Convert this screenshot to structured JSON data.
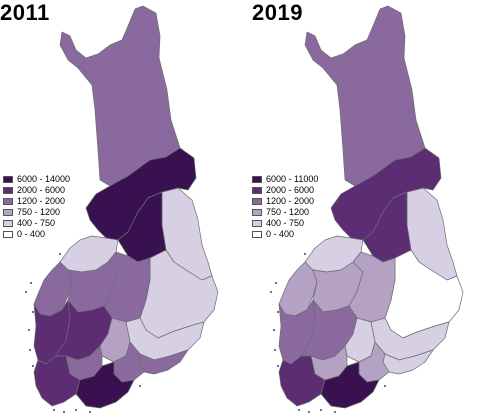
{
  "palette": {
    "c5": "#3a1150",
    "c4": "#5c2d73",
    "c3": "#8a6a9e",
    "c2": "#b4a1c4",
    "c1": "#d7cfe4",
    "c0": "#ffffff",
    "border": "#6d6d6d"
  },
  "maps": [
    {
      "id": "2011",
      "year": "2011",
      "legend": [
        {
          "label": "6000 - 14000",
          "color": "#3a1150"
        },
        {
          "label": "2000 - 6000",
          "color": "#5c2d73"
        },
        {
          "label": "1200 - 2000",
          "color": "#8a6a9e"
        },
        {
          "label": "750 - 1200",
          "color": "#b4a1c4"
        },
        {
          "label": "400 - 750",
          "color": "#d7cfe4"
        },
        {
          "label": "0 - 400",
          "color": "#ffffff"
        }
      ],
      "regions": {
        "lapland": "c3",
        "kainuu": "c5",
        "north_ostrobothnia": "c5",
        "central_ostrobothnia": "c1",
        "ostrobothnia": "c3",
        "south_ostrobothnia": "c3",
        "central_finland": "c3",
        "north_savo": "c1",
        "north_karelia": "c1",
        "satakunta": "c4",
        "pirkanmaa": "c4",
        "southwest_finland": "c4",
        "kanta_hame": "c3",
        "paijat_hame": "c2",
        "south_savo": "c1",
        "south_karelia": "c3",
        "kymenlaakso": "c3",
        "uusimaa": "c5"
      }
    },
    {
      "id": "2019",
      "year": "2019",
      "legend": [
        {
          "label": "6000 - 11000",
          "color": "#3a1150"
        },
        {
          "label": "2000 - 6000",
          "color": "#5c2d73"
        },
        {
          "label": "1200 - 2000",
          "color": "#8a6a9e"
        },
        {
          "label": "750 - 1200",
          "color": "#b4a1c4"
        },
        {
          "label": "400 - 750",
          "color": "#d7cfe4"
        },
        {
          "label": "0 - 400",
          "color": "#ffffff"
        }
      ],
      "regions": {
        "lapland": "c3",
        "kainuu": "c4",
        "north_ostrobothnia": "c4",
        "central_ostrobothnia": "c1",
        "ostrobothnia": "c2",
        "south_ostrobothnia": "c2",
        "central_finland": "c2",
        "north_savo": "c0",
        "north_karelia": "c1",
        "satakunta": "c3",
        "pirkanmaa": "c3",
        "southwest_finland": "c4",
        "kanta_hame": "c2",
        "paijat_hame": "c1",
        "south_savo": "c1",
        "south_karelia": "c1",
        "kymenlaakso": "c2",
        "uusimaa": "c5"
      }
    }
  ]
}
